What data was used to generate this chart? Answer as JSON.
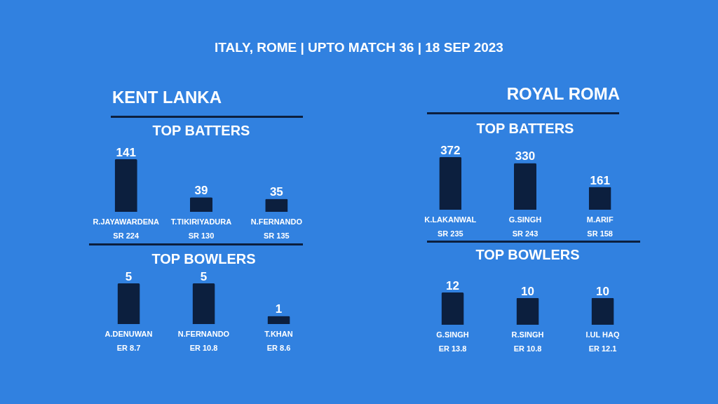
{
  "chart_data": [
    {
      "type": "other",
      "title": "ITALY, ROME | UPTO MATCH 36 | 18 SEP 2023"
    },
    {
      "type": "bar",
      "title": "KENT LANKA",
      "subtitle": "TOP BATTERS",
      "categories": [
        "R.JAYAWARDENA",
        "T.TIKIRIYADURA",
        "N.FERNANDO"
      ],
      "values": [
        141,
        39,
        35
      ],
      "color": "#0c1f3e",
      "data_labels": true,
      "annotations": [
        "SR 224",
        "SR 130",
        "SR 135"
      ]
    },
    {
      "type": "bar",
      "title": "TOP BOWLERS",
      "categories": [
        "A.DENUWAN",
        "N.FERNANDO",
        "T.KHAN"
      ],
      "values": [
        5,
        5,
        1
      ],
      "color": "#0c1f3e",
      "data_labels": true,
      "annotations": [
        "ER 8.7",
        "ER 10.8",
        "ER 8.6"
      ]
    },
    {
      "type": "bar",
      "title": "ROYAL ROMA",
      "subtitle": "TOP BATTERS",
      "categories": [
        "K.LAKANWAL",
        "G.SINGH",
        "M.ARIF"
      ],
      "values": [
        372,
        330,
        161
      ],
      "color": "#0c1f3e",
      "data_labels": true,
      "annotations": [
        "SR 235",
        "SR 243",
        "SR 158"
      ]
    },
    {
      "type": "bar",
      "title": "TOP BOWLERS",
      "categories": [
        "G.SINGH",
        "R.SINGH",
        "I.UL HAQ"
      ],
      "values": [
        12,
        10,
        10
      ],
      "color": "#0c1f3e",
      "data_labels": true,
      "annotations": [
        "ER 13.8",
        "ER 10.8",
        "ER 12.1"
      ]
    }
  ]
}
